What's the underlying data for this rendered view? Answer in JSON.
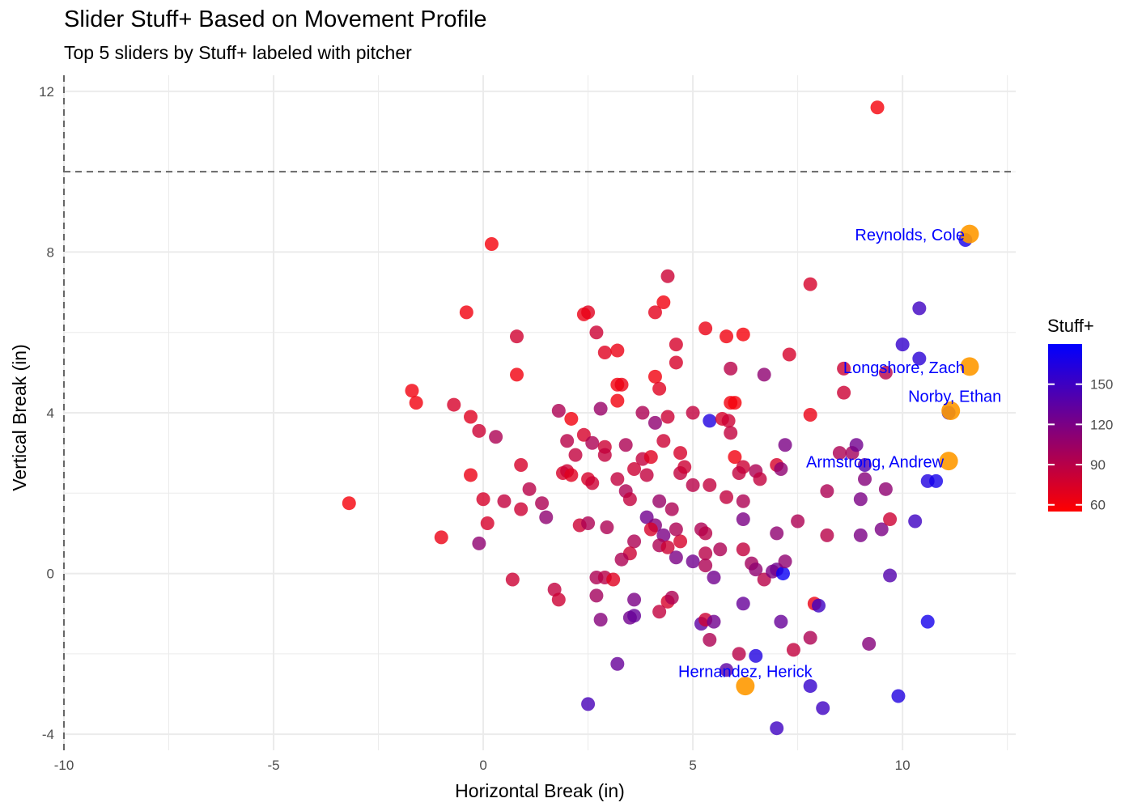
{
  "chart_data": {
    "type": "scatter",
    "title": "Slider Stuff+ Based on Movement Profile",
    "subtitle": "Top 5 sliders by Stuff+ labeled with pitcher",
    "xlabel": "Horizontal Break (in)",
    "ylabel": "Vertical Break (in)",
    "xlim": [
      -10.0,
      12.7
    ],
    "ylim": [
      -4.4,
      12.4
    ],
    "x_ticks": [
      -10,
      -5,
      0,
      5,
      10
    ],
    "y_ticks": [
      -4,
      0,
      4,
      8,
      12
    ],
    "grid": true,
    "reference_lines": {
      "vertical_x": -10,
      "horizontal_y": 10,
      "style": "dashed"
    },
    "legend": {
      "title": "Stuff+",
      "position": "right",
      "ticks": [
        60,
        90,
        120,
        150
      ],
      "range": [
        55,
        180
      ],
      "low_color": "#ff0000",
      "high_color": "#0000ff"
    },
    "highlight_color": "#ff9900",
    "label_color": "#0000ff",
    "labeled_points": [
      {
        "name": "Reynolds, Cole",
        "x": 11.6,
        "y": 8.45
      },
      {
        "name": "Longshore, Zach",
        "x": 11.6,
        "y": 5.15
      },
      {
        "name": "Norby, Ethan",
        "x": 11.15,
        "y": 4.05
      },
      {
        "name": "Armstrong, Andrew",
        "x": 11.1,
        "y": 2.8
      },
      {
        "name": "Hernandez, Herick",
        "x": 6.25,
        "y": -2.8
      }
    ],
    "points": [
      [
        9.4,
        11.6,
        60
      ],
      [
        0.2,
        8.2,
        60
      ],
      [
        7.8,
        7.2,
        75
      ],
      [
        4.4,
        7.4,
        80
      ],
      [
        -0.4,
        6.5,
        62
      ],
      [
        2.5,
        6.5,
        70
      ],
      [
        2.4,
        6.45,
        65
      ],
      [
        4.3,
        6.75,
        62
      ],
      [
        4.1,
        6.5,
        68
      ],
      [
        0.8,
        5.9,
        78
      ],
      [
        2.7,
        6.0,
        80
      ],
      [
        5.3,
        6.1,
        65
      ],
      [
        5.8,
        5.9,
        62
      ],
      [
        6.2,
        5.95,
        60
      ],
      [
        4.6,
        5.7,
        75
      ],
      [
        2.9,
        5.5,
        70
      ],
      [
        3.2,
        5.55,
        65
      ],
      [
        7.3,
        5.45,
        75
      ],
      [
        4.6,
        5.25,
        75
      ],
      [
        10.4,
        6.6,
        150
      ],
      [
        10.0,
        5.7,
        155
      ],
      [
        10.4,
        5.35,
        160
      ],
      [
        11.5,
        8.3,
        170
      ],
      [
        9.6,
        5.0,
        90
      ],
      [
        8.6,
        5.1,
        80
      ],
      [
        5.9,
        5.1,
        90
      ],
      [
        6.7,
        4.95,
        110
      ],
      [
        0.8,
        4.95,
        62
      ],
      [
        3.2,
        4.7,
        62
      ],
      [
        3.3,
        4.7,
        65
      ],
      [
        4.1,
        4.9,
        62
      ],
      [
        4.2,
        4.6,
        70
      ],
      [
        -1.7,
        4.55,
        62
      ],
      [
        -1.6,
        4.25,
        62
      ],
      [
        -0.7,
        4.2,
        75
      ],
      [
        3.2,
        4.3,
        62
      ],
      [
        8.6,
        4.5,
        80
      ],
      [
        -0.3,
        3.9,
        70
      ],
      [
        1.8,
        4.05,
        95
      ],
      [
        2.1,
        3.85,
        62
      ],
      [
        2.8,
        4.1,
        105
      ],
      [
        3.8,
        4.0,
        95
      ],
      [
        4.1,
        3.75,
        110
      ],
      [
        4.4,
        3.9,
        80
      ],
      [
        5.0,
        4.0,
        85
      ],
      [
        5.4,
        3.8,
        165
      ],
      [
        5.7,
        3.85,
        75
      ],
      [
        5.85,
        3.8,
        80
      ],
      [
        5.9,
        3.5,
        85
      ],
      [
        5.9,
        4.25,
        62
      ],
      [
        6.0,
        4.25,
        60
      ],
      [
        7.8,
        3.95,
        65
      ],
      [
        11.1,
        4.0,
        165
      ],
      [
        -0.1,
        3.55,
        80
      ],
      [
        0.3,
        3.4,
        95
      ],
      [
        2.0,
        3.3,
        90
      ],
      [
        2.4,
        3.45,
        75
      ],
      [
        2.2,
        2.95,
        85
      ],
      [
        2.6,
        3.25,
        95
      ],
      [
        2.9,
        3.15,
        80
      ],
      [
        2.9,
        2.95,
        85
      ],
      [
        3.4,
        3.2,
        95
      ],
      [
        3.8,
        2.85,
        85
      ],
      [
        4.0,
        2.9,
        70
      ],
      [
        4.3,
        3.3,
        80
      ],
      [
        4.7,
        3.0,
        75
      ],
      [
        4.7,
        2.5,
        85
      ],
      [
        4.8,
        2.65,
        80
      ],
      [
        6.0,
        2.9,
        62
      ],
      [
        6.2,
        2.65,
        80
      ],
      [
        6.1,
        2.5,
        85
      ],
      [
        6.5,
        2.55,
        95
      ],
      [
        6.6,
        2.35,
        85
      ],
      [
        7.0,
        2.7,
        75
      ],
      [
        7.1,
        2.6,
        110
      ],
      [
        7.2,
        3.2,
        120
      ],
      [
        8.5,
        3.0,
        95
      ],
      [
        8.8,
        3.0,
        100
      ],
      [
        8.9,
        3.2,
        125
      ],
      [
        9.1,
        2.7,
        140
      ],
      [
        9.1,
        2.35,
        115
      ],
      [
        9.6,
        2.1,
        110
      ],
      [
        10.6,
        2.3,
        165
      ],
      [
        10.8,
        2.3,
        170
      ],
      [
        0.9,
        2.7,
        75
      ],
      [
        -0.3,
        2.45,
        65
      ],
      [
        1.9,
        2.5,
        75
      ],
      [
        2.0,
        2.55,
        80
      ],
      [
        2.1,
        2.45,
        70
      ],
      [
        2.5,
        2.35,
        75
      ],
      [
        2.6,
        2.25,
        80
      ],
      [
        3.2,
        2.35,
        85
      ],
      [
        3.4,
        2.05,
        95
      ],
      [
        3.6,
        2.6,
        80
      ],
      [
        3.9,
        2.45,
        85
      ],
      [
        4.2,
        1.8,
        105
      ],
      [
        4.5,
        1.6,
        95
      ],
      [
        5.0,
        2.2,
        90
      ],
      [
        5.4,
        2.2,
        85
      ],
      [
        5.8,
        1.9,
        85
      ],
      [
        6.2,
        1.8,
        95
      ],
      [
        8.2,
        2.05,
        95
      ],
      [
        9.0,
        1.85,
        120
      ],
      [
        -3.2,
        1.75,
        60
      ],
      [
        0.0,
        1.85,
        75
      ],
      [
        0.5,
        1.8,
        85
      ],
      [
        1.1,
        2.1,
        90
      ],
      [
        1.4,
        1.75,
        95
      ],
      [
        0.9,
        1.6,
        80
      ],
      [
        0.1,
        1.25,
        75
      ],
      [
        1.5,
        1.4,
        110
      ],
      [
        3.5,
        1.85,
        85
      ],
      [
        3.9,
        1.4,
        125
      ],
      [
        4.1,
        1.2,
        115
      ],
      [
        4.3,
        0.95,
        120
      ],
      [
        4.7,
        0.8,
        75
      ],
      [
        4.6,
        1.1,
        95
      ],
      [
        2.3,
        1.2,
        80
      ],
      [
        2.5,
        1.25,
        95
      ],
      [
        2.95,
        1.15,
        95
      ],
      [
        5.2,
        1.1,
        95
      ],
      [
        5.3,
        1.0,
        90
      ],
      [
        6.2,
        1.35,
        120
      ],
      [
        7.0,
        1.0,
        110
      ],
      [
        7.5,
        1.3,
        95
      ],
      [
        8.2,
        0.95,
        90
      ],
      [
        9.0,
        0.95,
        120
      ],
      [
        9.5,
        1.1,
        120
      ],
      [
        9.7,
        1.35,
        80
      ],
      [
        10.3,
        1.3,
        150
      ],
      [
        -1.0,
        0.9,
        65
      ],
      [
        -0.1,
        0.75,
        110
      ],
      [
        3.6,
        0.8,
        95
      ],
      [
        3.5,
        0.5,
        80
      ],
      [
        3.3,
        0.35,
        95
      ],
      [
        4.0,
        1.1,
        75
      ],
      [
        4.2,
        0.7,
        95
      ],
      [
        4.4,
        0.65,
        80
      ],
      [
        4.6,
        0.4,
        120
      ],
      [
        5.0,
        0.3,
        125
      ],
      [
        5.3,
        0.5,
        90
      ],
      [
        5.65,
        0.6,
        95
      ],
      [
        5.3,
        0.2,
        95
      ],
      [
        6.2,
        0.6,
        85
      ],
      [
        6.4,
        0.25,
        100
      ],
      [
        6.5,
        0.1,
        110
      ],
      [
        6.7,
        -0.15,
        90
      ],
      [
        6.9,
        0.05,
        120
      ],
      [
        7.0,
        0.1,
        125
      ],
      [
        7.15,
        0.0,
        175
      ],
      [
        7.2,
        0.3,
        110
      ],
      [
        9.7,
        -0.05,
        140
      ],
      [
        0.7,
        -0.15,
        80
      ],
      [
        1.7,
        -0.4,
        85
      ],
      [
        1.8,
        -0.65,
        80
      ],
      [
        2.7,
        -0.1,
        95
      ],
      [
        2.9,
        -0.1,
        90
      ],
      [
        3.1,
        -0.15,
        70
      ],
      [
        2.7,
        -0.55,
        100
      ],
      [
        3.6,
        -0.65,
        120
      ],
      [
        4.4,
        -0.7,
        75
      ],
      [
        4.5,
        -0.6,
        95
      ],
      [
        5.5,
        -0.1,
        125
      ],
      [
        6.2,
        -0.75,
        130
      ],
      [
        7.9,
        -0.75,
        65
      ],
      [
        8.0,
        -0.8,
        150
      ],
      [
        4.2,
        -0.95,
        85
      ],
      [
        2.8,
        -1.15,
        115
      ],
      [
        3.5,
        -1.1,
        125
      ],
      [
        3.6,
        -1.05,
        130
      ],
      [
        5.2,
        -1.25,
        135
      ],
      [
        5.3,
        -1.15,
        80
      ],
      [
        5.5,
        -1.2,
        125
      ],
      [
        7.1,
        -1.2,
        130
      ],
      [
        10.6,
        -1.2,
        170
      ],
      [
        5.4,
        -1.65,
        95
      ],
      [
        6.1,
        -2.0,
        90
      ],
      [
        6.5,
        -2.05,
        165
      ],
      [
        7.4,
        -1.9,
        85
      ],
      [
        7.8,
        -1.6,
        95
      ],
      [
        9.2,
        -1.75,
        115
      ],
      [
        3.2,
        -2.25,
        130
      ],
      [
        5.8,
        -2.4,
        135
      ],
      [
        7.8,
        -2.8,
        155
      ],
      [
        9.9,
        -3.05,
        165
      ],
      [
        8.1,
        -3.35,
        150
      ],
      [
        2.5,
        -3.25,
        145
      ],
      [
        7.0,
        -3.85,
        150
      ]
    ]
  }
}
